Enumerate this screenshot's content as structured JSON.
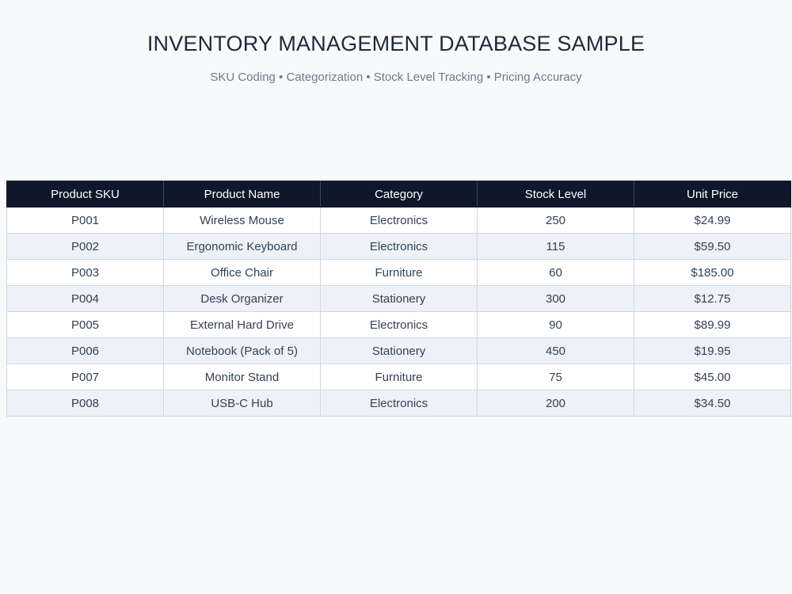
{
  "header": {
    "title": "INVENTORY MANAGEMENT DATABASE SAMPLE",
    "subtitle": "SKU Coding • Categorization • Stock Level Tracking • Pricing Accuracy"
  },
  "table": {
    "columns": [
      "Product SKU",
      "Product Name",
      "Category",
      "Stock Level",
      "Unit Price"
    ],
    "rows": [
      [
        "P001",
        "Wireless Mouse",
        "Electronics",
        "250",
        "$24.99"
      ],
      [
        "P002",
        "Ergonomic Keyboard",
        "Electronics",
        "115",
        "$59.50"
      ],
      [
        "P003",
        "Office Chair",
        "Furniture",
        "60",
        "$185.00"
      ],
      [
        "P004",
        "Desk Organizer",
        "Stationery",
        "300",
        "$12.75"
      ],
      [
        "P005",
        "External Hard Drive",
        "Electronics",
        "90",
        "$89.99"
      ],
      [
        "P006",
        "Notebook (Pack of 5)",
        "Stationery",
        "450",
        "$19.95"
      ],
      [
        "P007",
        "Monitor Stand",
        "Furniture",
        "75",
        "$45.00"
      ],
      [
        "P008",
        "USB-C Hub",
        "Electronics",
        "200",
        "$34.50"
      ]
    ]
  },
  "colors": {
    "header_bg": "#0f172a",
    "alt_row_bg": "#eef2f8",
    "page_bg": "#f8f9fb"
  }
}
